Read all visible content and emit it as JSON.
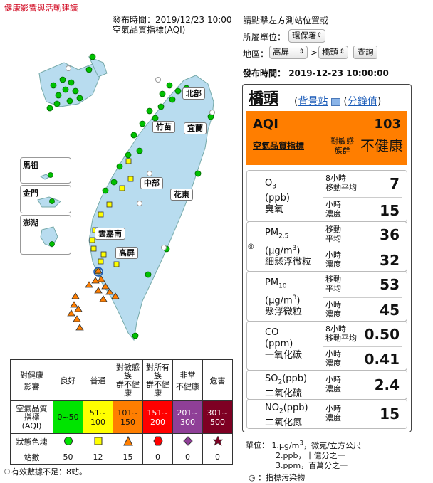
{
  "header": {
    "health_link": "健康影響與活動建議",
    "publish_time_line": "發布時間：2019/12/23 10:00",
    "index_label": "空氣品質指標(AQI)"
  },
  "controls": {
    "hint": "請點擊左方測站位置或",
    "unit_label": "所屬單位：",
    "unit_value": "環保署",
    "area_label": "地區：",
    "county_value": "高屏",
    "gt": ">",
    "station_value": "橋頭",
    "query_button": "查詢",
    "publish_time_label": "發布時間：",
    "publish_time_value": "2019-12-23 10:00:00"
  },
  "map": {
    "regions": [
      "北部",
      "竹苗",
      "宜蘭",
      "中部",
      "花東",
      "雲嘉南",
      "高屏"
    ],
    "insets": [
      "馬祖",
      "金門",
      "澎湖"
    ]
  },
  "station": {
    "name": "橋頭",
    "open_paren": "(",
    "comma": ",",
    "close_paren": ")",
    "background_link": "背景站",
    "minute_link": "分鐘值",
    "aqi_label": "AQI",
    "aqi_value": "103",
    "indicator_pollutant_link": "空氣品質指標",
    "sensitive_group": "對敏感\n族群",
    "level": "不健康",
    "aqi_color": "#ff7e00"
  },
  "pollutants": [
    {
      "name_main": "O",
      "name_sub": "3",
      "unit": "(ppb)",
      "cn": "臭氧",
      "m1_label": "8小時\n移動平均",
      "m1": "7",
      "m2_label": "小時\n濃度",
      "m2": "15"
    },
    {
      "name_main": "PM",
      "name_sub": "2.5",
      "unit": "(μg/m",
      "unit_sup": "3",
      "unit_end": ")",
      "cn": "細懸浮微粒",
      "m1_label": "移動\n平均",
      "m1": "36",
      "m2_label": "小時\n濃度",
      "m2": "32"
    },
    {
      "name_main": "PM",
      "name_sub": "10",
      "unit": "(μg/m",
      "unit_sup": "3",
      "unit_end": ")",
      "cn": "懸浮微粒",
      "m1_label": "移動\n平均",
      "m1": "53",
      "m2_label": "小時\n濃度",
      "m2": "45"
    },
    {
      "name_main": "CO",
      "unit": "(ppm)",
      "cn": "一氧化碳",
      "m1_label": "8小時\n移動平均",
      "m1": "0.50",
      "m2_label": "小時\n濃度",
      "m2": "0.41"
    },
    {
      "name_main": "SO",
      "name_sub": "2",
      "name_end": "(ppb)",
      "cn": "二氧化硫",
      "m2_label": "小時\n濃度",
      "m2": "2.4"
    },
    {
      "name_main": "NO",
      "name_sub": "2",
      "name_end": "(ppb)",
      "cn": "二氧化氮",
      "m2_label": "小時\n濃度",
      "m2": "15"
    }
  ],
  "legend": {
    "row_head": "對健康\n影響",
    "levels": [
      "良好",
      "普通",
      "對敏感\n族\n群不健\n康",
      "對所有\n族\n群不健\n康",
      "非常\n不健康",
      "危害"
    ],
    "aqi_head": "空氣品質\n指標\n(AQI)",
    "ranges": [
      "0~50",
      "51~\n100",
      "101~\n150",
      "151~\n200",
      "201~\n300",
      "301~\n500"
    ],
    "colors": [
      "#00e400",
      "#ffff00",
      "#ff7e00",
      "#ff0000",
      "#8f3f97",
      "#7e0023"
    ],
    "text_colors": [
      "#111",
      "#111",
      "#111",
      "#fff",
      "#fff",
      "#fff"
    ],
    "shape_head": "狀態色塊",
    "shapes": [
      "circle-icon",
      "square-icon",
      "triangle-icon",
      "hexagon-icon",
      "diamond-icon",
      "star-icon"
    ],
    "count_head": "站數",
    "counts": [
      "50",
      "12",
      "15",
      "0",
      "0",
      "0"
    ]
  },
  "notes": {
    "invalid": "有效數據不足：8站。",
    "unit_title": "單位：",
    "unit1": "1.μg/m",
    "unit1_sup": "3",
    "unit1_end": "，微克/立方公尺",
    "unit2": "2.ppb，十億分之一",
    "unit3": "3.ppm，百萬分之一",
    "indicator_note": "：指標污染物"
  }
}
